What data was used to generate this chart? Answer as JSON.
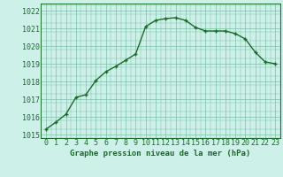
{
  "x": [
    0,
    1,
    2,
    3,
    4,
    5,
    6,
    7,
    8,
    9,
    10,
    11,
    12,
    13,
    14,
    15,
    16,
    17,
    18,
    19,
    20,
    21,
    22,
    23
  ],
  "y": [
    1015.3,
    1015.7,
    1016.15,
    1017.1,
    1017.25,
    1018.05,
    1018.55,
    1018.85,
    1019.2,
    1019.55,
    1021.1,
    1021.45,
    1021.55,
    1021.6,
    1021.45,
    1021.05,
    1020.85,
    1020.85,
    1020.85,
    1020.7,
    1020.4,
    1019.65,
    1019.1,
    1019.0
  ],
  "xlabel": "Graphe pression niveau de la mer (hPa)",
  "bg_color": "#cdf0e8",
  "line_color": "#1a6b2a",
  "marker_color": "#1a6b2a",
  "grid_color": "#7bbfaa",
  "ylim_min": 1014.8,
  "ylim_max": 1022.4,
  "xlim_min": -0.5,
  "xlim_max": 23.5,
  "yticks": [
    1015,
    1016,
    1017,
    1018,
    1019,
    1020,
    1021,
    1022
  ],
  "xticks": [
    0,
    1,
    2,
    3,
    4,
    5,
    6,
    7,
    8,
    9,
    10,
    11,
    12,
    13,
    14,
    15,
    16,
    17,
    18,
    19,
    20,
    21,
    22,
    23
  ],
  "xtick_labels": [
    "0",
    "1",
    "2",
    "3",
    "4",
    "5",
    "6",
    "7",
    "8",
    "9",
    "10",
    "11",
    "12",
    "13",
    "14",
    "15",
    "16",
    "17",
    "18",
    "19",
    "20",
    "21",
    "22",
    "23"
  ],
  "font_size_label": 6.5,
  "font_size_tick": 6.0,
  "line_width": 1.0,
  "marker_size": 3.5
}
